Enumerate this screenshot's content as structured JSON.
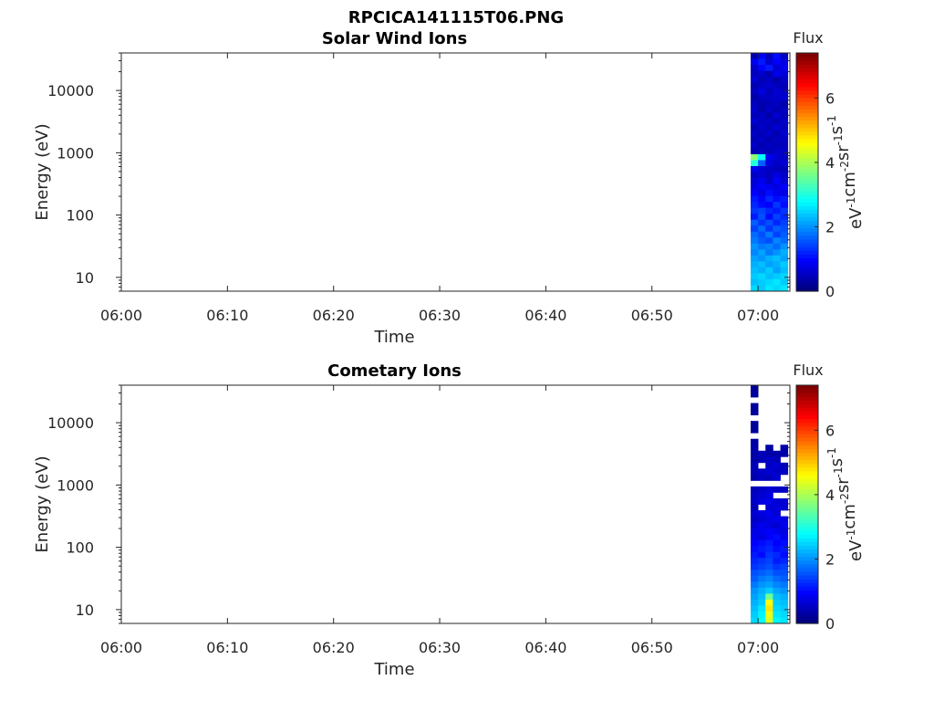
{
  "figure_title": "RPCICA141115T06.PNG",
  "chart_data": [
    {
      "type": "heatmap",
      "title": "Solar Wind Ions",
      "xlabel": "Time",
      "ylabel": "Energy (eV)",
      "x_ticks": [
        "06:00",
        "06:10",
        "06:20",
        "06:30",
        "06:40",
        "06:50",
        "07:00"
      ],
      "x_range_minutes": [
        0,
        63
      ],
      "y_scale": "log",
      "y_ticks": [
        10,
        100,
        1000,
        10000
      ],
      "y_range": [
        6,
        40000
      ],
      "colorbar": {
        "label": "Flux",
        "unit": "eV-1cm-2sr-1s-1",
        "ticks": [
          0,
          2,
          4,
          6
        ],
        "range": [
          0,
          7.4
        ],
        "colormap": "jet"
      },
      "data_start_minute": 59.3,
      "data_end_minute": 62.8,
      "energy_bins": 40,
      "data": [
        [
          0.35,
          0.9,
          0.45,
          1.0,
          0.5
        ],
        [
          0.8,
          1.1,
          0.6,
          0.9,
          0.7
        ],
        [
          0.5,
          0.9,
          1.1,
          0.6,
          0.8
        ],
        [
          0.45,
          0.55,
          0.35,
          0.8,
          0.65
        ],
        [
          0.6,
          0.4,
          0.5,
          0.3,
          0.55
        ],
        [
          0.35,
          0.5,
          0.55,
          0.45,
          0.4
        ],
        [
          0.45,
          0.7,
          0.4,
          0.6,
          0.5
        ],
        [
          0.3,
          0.45,
          0.5,
          0.55,
          0.6
        ],
        [
          0.45,
          0.35,
          0.4,
          0.5,
          0.3
        ],
        [
          0.55,
          0.3,
          0.5,
          0.35,
          0.45
        ],
        [
          0.4,
          0.5,
          0.3,
          0.6,
          0.4
        ],
        [
          0.6,
          0.45,
          0.5,
          0.35,
          0.55
        ],
        [
          0.35,
          0.55,
          0.4,
          0.6,
          0.45
        ],
        [
          0.5,
          0.4,
          0.55,
          0.35,
          0.6
        ],
        [
          0.4,
          0.5,
          0.35,
          0.45,
          0.5
        ],
        [
          0.55,
          0.35,
          0.5,
          0.4,
          0.45
        ],
        [
          0.35,
          0.45,
          0.4,
          0.55,
          0.5
        ],
        [
          3.8,
          2.8,
          0.8,
          0.6,
          0.5
        ],
        [
          3.0,
          1.6,
          0.7,
          0.5,
          0.6
        ],
        [
          0.8,
          0.6,
          0.5,
          0.45,
          0.4
        ],
        [
          0.5,
          0.6,
          0.45,
          0.7,
          0.55
        ],
        [
          0.6,
          0.8,
          0.5,
          0.9,
          0.6
        ],
        [
          0.7,
          0.9,
          0.8,
          0.7,
          0.9
        ],
        [
          0.9,
          0.7,
          1.0,
          0.8,
          0.7
        ],
        [
          1.1,
          0.9,
          1.2,
          1.0,
          1.1
        ],
        [
          1.2,
          1.0,
          0.9,
          1.3,
          1.0
        ],
        [
          1.3,
          1.4,
          1.2,
          1.1,
          1.3
        ],
        [
          1.1,
          1.5,
          1.0,
          1.4,
          1.2
        ],
        [
          1.6,
          1.3,
          1.5,
          1.2,
          1.4
        ],
        [
          1.4,
          1.7,
          1.3,
          1.6,
          1.5
        ],
        [
          1.7,
          1.5,
          1.8,
          1.4,
          1.6
        ],
        [
          1.8,
          1.6,
          1.5,
          1.9,
          1.7
        ],
        [
          2.0,
          1.8,
          1.9,
          1.7,
          2.0
        ],
        [
          1.9,
          2.1,
          1.8,
          2.0,
          2.2
        ],
        [
          2.1,
          2.0,
          2.2,
          2.3,
          2.1
        ],
        [
          2.2,
          2.3,
          2.1,
          2.2,
          2.4
        ],
        [
          2.3,
          2.2,
          2.4,
          2.1,
          2.3
        ],
        [
          2.4,
          2.5,
          2.3,
          2.4,
          2.5
        ],
        [
          2.3,
          2.4,
          2.5,
          2.6,
          2.4
        ],
        [
          2.5,
          2.4,
          2.6,
          2.5,
          2.6
        ]
      ]
    },
    {
      "type": "heatmap",
      "title": "Cometary Ions",
      "xlabel": "Time",
      "ylabel": "Energy (eV)",
      "x_ticks": [
        "06:00",
        "06:10",
        "06:20",
        "06:30",
        "06:40",
        "06:50",
        "07:00"
      ],
      "x_range_minutes": [
        0,
        63
      ],
      "y_scale": "log",
      "y_ticks": [
        10,
        100,
        1000,
        10000
      ],
      "y_range": [
        6,
        40000
      ],
      "colorbar": {
        "label": "Flux",
        "unit": "eV-1cm-2sr-1s-1",
        "ticks": [
          0,
          2,
          4,
          6
        ],
        "range": [
          0,
          7.4
        ],
        "colormap": "jet"
      },
      "data_start_minute": 59.3,
      "data_end_minute": 62.8,
      "energy_bins": 40,
      "data": [
        [
          0.2,
          null,
          null,
          null,
          null
        ],
        [
          0.2,
          null,
          null,
          null,
          null
        ],
        [
          null,
          null,
          null,
          null,
          null
        ],
        [
          0.2,
          null,
          null,
          null,
          null
        ],
        [
          0.2,
          null,
          null,
          null,
          null
        ],
        [
          null,
          null,
          null,
          null,
          null
        ],
        [
          0.2,
          null,
          null,
          null,
          null
        ],
        [
          0.2,
          null,
          null,
          null,
          null
        ],
        [
          null,
          null,
          null,
          null,
          null
        ],
        [
          0.25,
          null,
          null,
          null,
          null
        ],
        [
          0.3,
          null,
          0.3,
          null,
          0.3
        ],
        [
          0.3,
          0.4,
          0.3,
          0.3,
          0.3
        ],
        [
          0.3,
          0.4,
          0.5,
          0.4,
          null
        ],
        [
          0.4,
          null,
          0.5,
          0.6,
          0.4
        ],
        [
          0.4,
          0.5,
          0.6,
          0.5,
          0.5
        ],
        [
          0.3,
          0.5,
          0.4,
          0.6,
          null
        ],
        [
          null,
          null,
          null,
          null,
          null
        ],
        [
          0.4,
          0.5,
          0.6,
          0.5,
          0.5
        ],
        [
          0.5,
          0.6,
          0.7,
          null,
          null
        ],
        [
          0.5,
          0.7,
          0.8,
          0.6,
          0.6
        ],
        [
          0.4,
          null,
          0.6,
          0.7,
          0.6
        ],
        [
          0.6,
          0.7,
          0.8,
          0.6,
          null
        ],
        [
          0.5,
          0.6,
          0.7,
          0.8,
          0.7
        ],
        [
          0.6,
          0.8,
          0.7,
          0.6,
          0.8
        ],
        [
          0.7,
          0.8,
          0.9,
          0.8,
          0.7
        ],
        [
          0.8,
          0.7,
          0.9,
          1.0,
          0.8
        ],
        [
          0.9,
          1.0,
          1.1,
          0.9,
          1.0
        ],
        [
          1.0,
          1.1,
          1.2,
          1.0,
          1.1
        ],
        [
          1.1,
          1.0,
          1.3,
          1.2,
          1.0
        ],
        [
          1.2,
          1.3,
          1.4,
          1.1,
          1.2
        ],
        [
          1.3,
          1.4,
          1.5,
          1.3,
          1.4
        ],
        [
          1.5,
          1.6,
          1.7,
          1.5,
          1.5
        ],
        [
          1.6,
          1.8,
          1.9,
          1.7,
          1.6
        ],
        [
          1.8,
          2.0,
          2.1,
          1.9,
          1.8
        ],
        [
          2.0,
          2.2,
          2.4,
          2.1,
          2.0
        ],
        [
          2.1,
          2.3,
          3.6,
          2.3,
          2.2
        ],
        [
          2.2,
          2.4,
          4.6,
          2.4,
          2.3
        ],
        [
          2.3,
          2.6,
          4.8,
          2.5,
          2.4
        ],
        [
          2.4,
          2.7,
          4.5,
          2.6,
          2.5
        ],
        [
          2.5,
          2.8,
          4.4,
          2.7,
          2.6
        ]
      ]
    }
  ]
}
